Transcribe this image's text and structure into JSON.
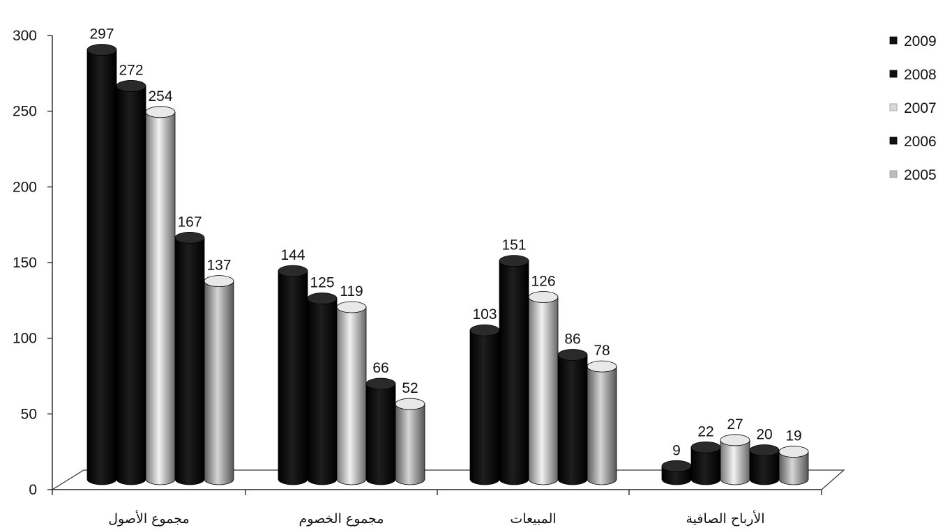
{
  "chart_data": {
    "type": "bar",
    "title": "",
    "xlabel": "",
    "ylabel": "",
    "ylim": [
      0,
      300
    ],
    "yticks": [
      "0",
      "50",
      "100",
      "150",
      "200",
      "250",
      "300"
    ],
    "categories": [
      "مجموع الأصول",
      "مجموع الخصوم",
      "المبيعات",
      "الأرباح الصافية"
    ],
    "series": [
      {
        "name": "2009",
        "values": [
          297,
          144,
          103,
          9
        ],
        "color": "#0b0b0b"
      },
      {
        "name": "2008",
        "values": [
          272,
          125,
          151,
          22
        ],
        "color": "#0b0b0b"
      },
      {
        "name": "2007",
        "values": [
          254,
          119,
          126,
          27
        ],
        "color": "#d9d9d9"
      },
      {
        "name": "2006",
        "values": [
          167,
          66,
          86,
          20
        ],
        "color": "#0b0b0b"
      },
      {
        "name": "2005",
        "values": [
          137,
          52,
          78,
          19
        ],
        "color": "#bdbdbd"
      }
    ],
    "legend_position": "right",
    "style": "3d-cylinder",
    "grid": false
  }
}
